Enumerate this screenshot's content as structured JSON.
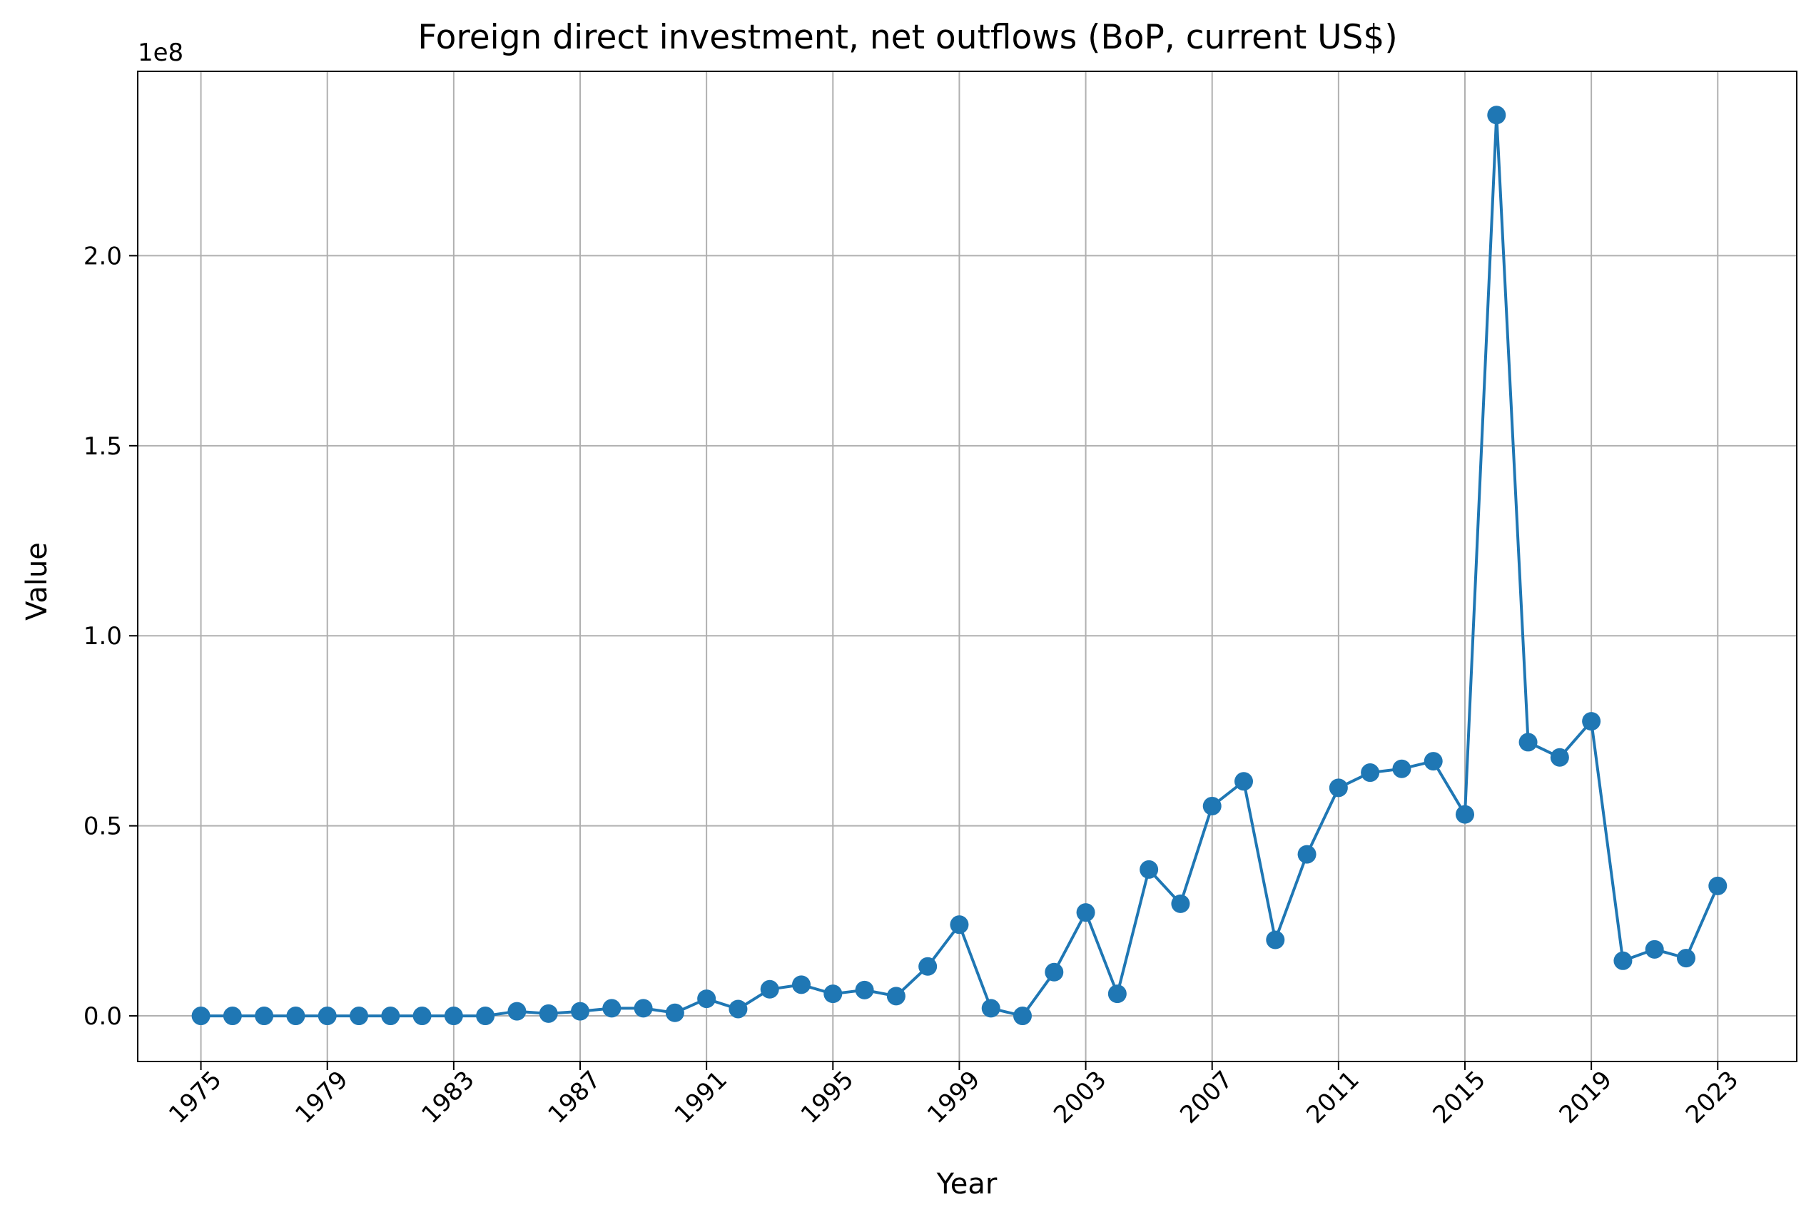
{
  "chart_data": {
    "type": "line",
    "title": "Foreign direct investment, net outflows (BoP, current US$)",
    "xlabel": "Year",
    "ylabel": "Value",
    "y_offset_label": "1e8",
    "xlim": [
      1973,
      2025.5
    ],
    "ylim": [
      -0.12,
      2.485
    ],
    "y_scale_multiplier": 100000000,
    "grid": true,
    "legend": "none",
    "x_ticks": [
      1975,
      1979,
      1983,
      1987,
      1991,
      1995,
      1999,
      2003,
      2007,
      2011,
      2015,
      2019,
      2023
    ],
    "y_ticks": [
      0.0,
      0.5,
      1.0,
      1.5,
      2.0
    ],
    "y_tick_labels": [
      "0.0",
      "0.5",
      "1.0",
      "1.5",
      "2.0"
    ],
    "colors": {
      "series": "#1f77b4",
      "grid": "#b0b0b0",
      "frame": "#000000"
    },
    "series": [
      {
        "x": [
          1975,
          1976,
          1977,
          1978,
          1979,
          1980,
          1981,
          1982,
          1983,
          1984,
          1985,
          1986,
          1987,
          1988,
          1989,
          1990,
          1991,
          1992,
          1993,
          1994,
          1995,
          1996,
          1997,
          1998,
          1999,
          2000,
          2001,
          2002,
          2003,
          2004,
          2005,
          2006,
          2007,
          2008,
          2009,
          2010,
          2011,
          2012,
          2013,
          2014,
          2015,
          2016,
          2017,
          2018,
          2019,
          2020,
          2021,
          2022,
          2023
        ],
        "values": [
          0.0,
          0.0,
          0.0,
          0.0,
          0.0,
          0.0,
          0.0,
          0.0,
          0.0,
          0.0,
          0.012,
          0.006,
          0.012,
          0.02,
          0.02,
          0.008,
          0.045,
          0.018,
          0.07,
          0.082,
          0.058,
          0.068,
          0.052,
          0.13,
          0.24,
          0.02,
          0.0,
          0.115,
          0.272,
          0.058,
          0.385,
          0.295,
          0.552,
          0.617,
          0.2,
          0.425,
          0.6,
          0.64,
          0.65,
          0.67,
          0.53,
          2.37,
          0.72,
          0.68,
          0.775,
          0.145,
          0.175,
          0.152,
          0.342
        ]
      }
    ]
  }
}
